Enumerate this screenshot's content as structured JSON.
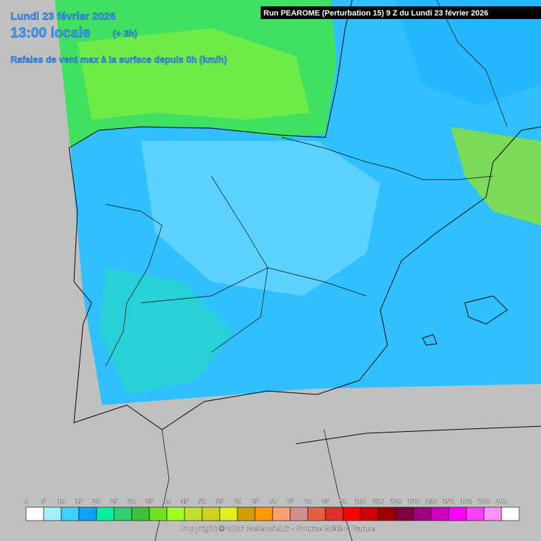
{
  "header": {
    "date": "Lundi 23 février 2026",
    "time": "13:00 locale",
    "offset": "(+ 3h)",
    "parameter": "Rafales de vent max à la surface depuis 0h (km/h)",
    "run": "Run PEAROME (Perturbation 15) 9 Z du Lundi 23 février 2026"
  },
  "legend": {
    "items": [
      {
        "label": 0,
        "color": "#ffffff"
      },
      {
        "label": 5,
        "color": "#a0f0ff"
      },
      {
        "label": 10,
        "color": "#40d0ff"
      },
      {
        "label": 15,
        "color": "#10a0ff"
      },
      {
        "label": 20,
        "color": "#00f0a0"
      },
      {
        "label": 25,
        "color": "#30d070"
      },
      {
        "label": 30,
        "color": "#40c040"
      },
      {
        "label": 35,
        "color": "#70e020"
      },
      {
        "label": 40,
        "color": "#a0ff20"
      },
      {
        "label": 45,
        "color": "#c0e030"
      },
      {
        "label": 50,
        "color": "#d0d020"
      },
      {
        "label": 55,
        "color": "#e0f020"
      },
      {
        "label": 60,
        "color": "#d0a000"
      },
      {
        "label": 65,
        "color": "#ff9900"
      },
      {
        "label": 70,
        "color": "#ffa070"
      },
      {
        "label": 75,
        "color": "#d09090"
      },
      {
        "label": 80,
        "color": "#e06040"
      },
      {
        "label": 85,
        "color": "#e03030"
      },
      {
        "label": 90,
        "color": "#ff0000"
      },
      {
        "label": 100,
        "color": "#d00000"
      },
      {
        "label": 110,
        "color": "#a00000"
      },
      {
        "label": 120,
        "color": "#800040"
      },
      {
        "label": 130,
        "color": "#a00080"
      },
      {
        "label": 140,
        "color": "#d000c0"
      },
      {
        "label": 150,
        "color": "#ff00ff"
      },
      {
        "label": 160,
        "color": "#ff40ff"
      },
      {
        "label": 180,
        "color": "#ff90ff"
      },
      {
        "label": 200,
        "color": "#ffffff"
      }
    ]
  },
  "footer": {
    "copyright": "Copyright © 2026 Meteociel.fr - Source Météo-France"
  }
}
